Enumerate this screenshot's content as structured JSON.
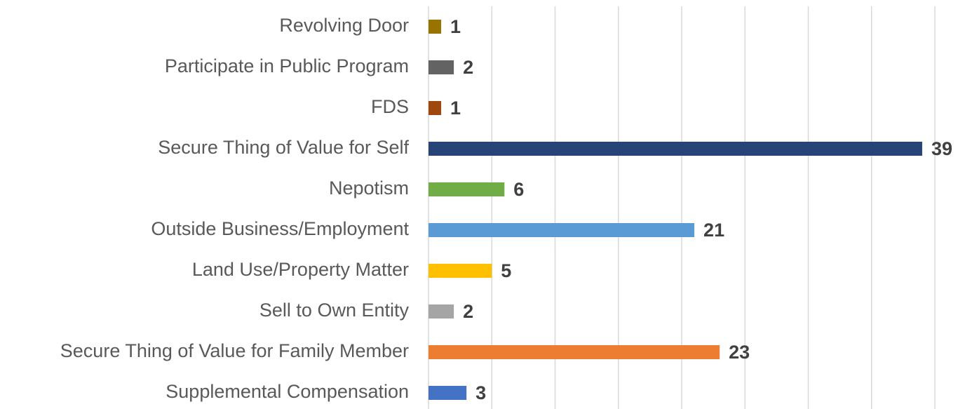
{
  "chart_data": {
    "type": "barh",
    "categories": [
      "Revolving Door",
      "Participate in Public Program",
      "FDS",
      "Secure Thing of Value for Self",
      "Nepotism",
      "Outside Business/Employment",
      "Land Use/Property Matter",
      "Sell to Own Entity",
      "Secure Thing of Value for Family Member",
      "Supplemental Compensation"
    ],
    "values": [
      1,
      2,
      1,
      39,
      6,
      21,
      5,
      2,
      23,
      3
    ],
    "colors": [
      "#997300",
      "#636363",
      "#9e480e",
      "#264478",
      "#70ad47",
      "#5b9bd5",
      "#ffc000",
      "#a5a5a5",
      "#ed7d31",
      "#4472c4"
    ],
    "xlim": [
      0,
      40
    ],
    "xticks": [
      0,
      5,
      10,
      15,
      20,
      25,
      30,
      35,
      40
    ],
    "grid": true
  }
}
